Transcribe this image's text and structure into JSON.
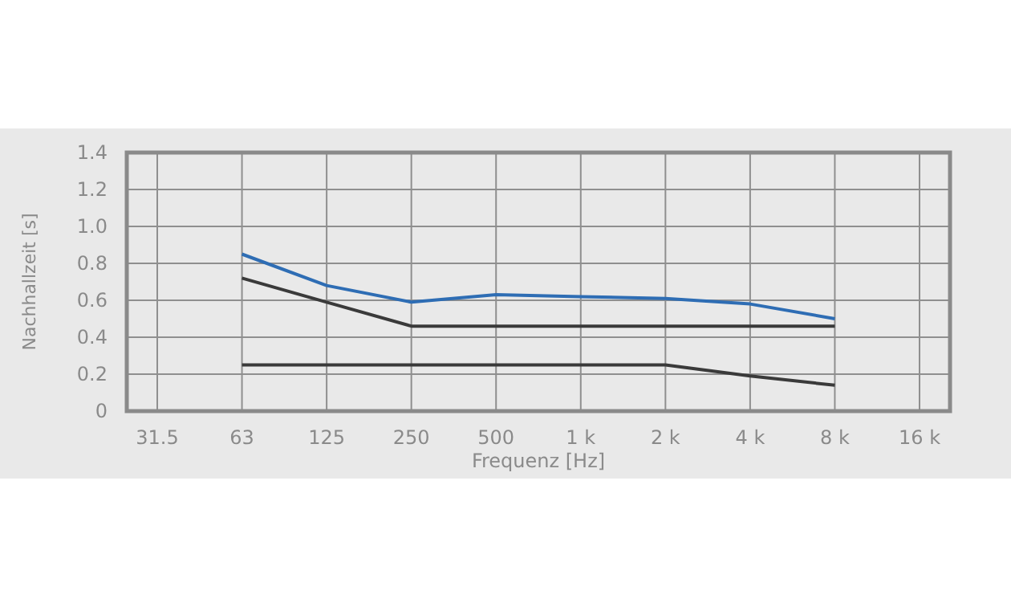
{
  "chart_data": {
    "type": "line",
    "xlabel": "Frequenz [Hz]",
    "ylabel": "Nachhallzeit [s]",
    "categories": [
      "31.5",
      "63",
      "125",
      "250",
      "500",
      "1 k",
      "2 k",
      "4 k",
      "8 k",
      "16 k"
    ],
    "series": [
      {
        "color": "#2e6db4",
        "values": [
          null,
          0.85,
          0.68,
          0.59,
          0.63,
          0.62,
          0.61,
          0.58,
          0.5,
          null
        ]
      },
      {
        "color": "#3a3a3a",
        "values": [
          null,
          0.72,
          0.59,
          0.46,
          0.46,
          0.46,
          0.46,
          0.46,
          0.46,
          null
        ]
      },
      {
        "color": "#3a3a3a",
        "values": [
          null,
          0.25,
          0.25,
          0.25,
          0.25,
          0.25,
          0.25,
          0.19,
          0.14,
          null
        ]
      }
    ],
    "ylim": [
      0,
      1.4
    ],
    "yticks": [
      {
        "value": 0,
        "label": "0"
      },
      0.2,
      0.4,
      0.6,
      0.8,
      {
        "value": 1.0,
        "label": "1.0"
      },
      1.2,
      1.4
    ],
    "grid": true,
    "marker": "none",
    "line_style": "solid"
  }
}
